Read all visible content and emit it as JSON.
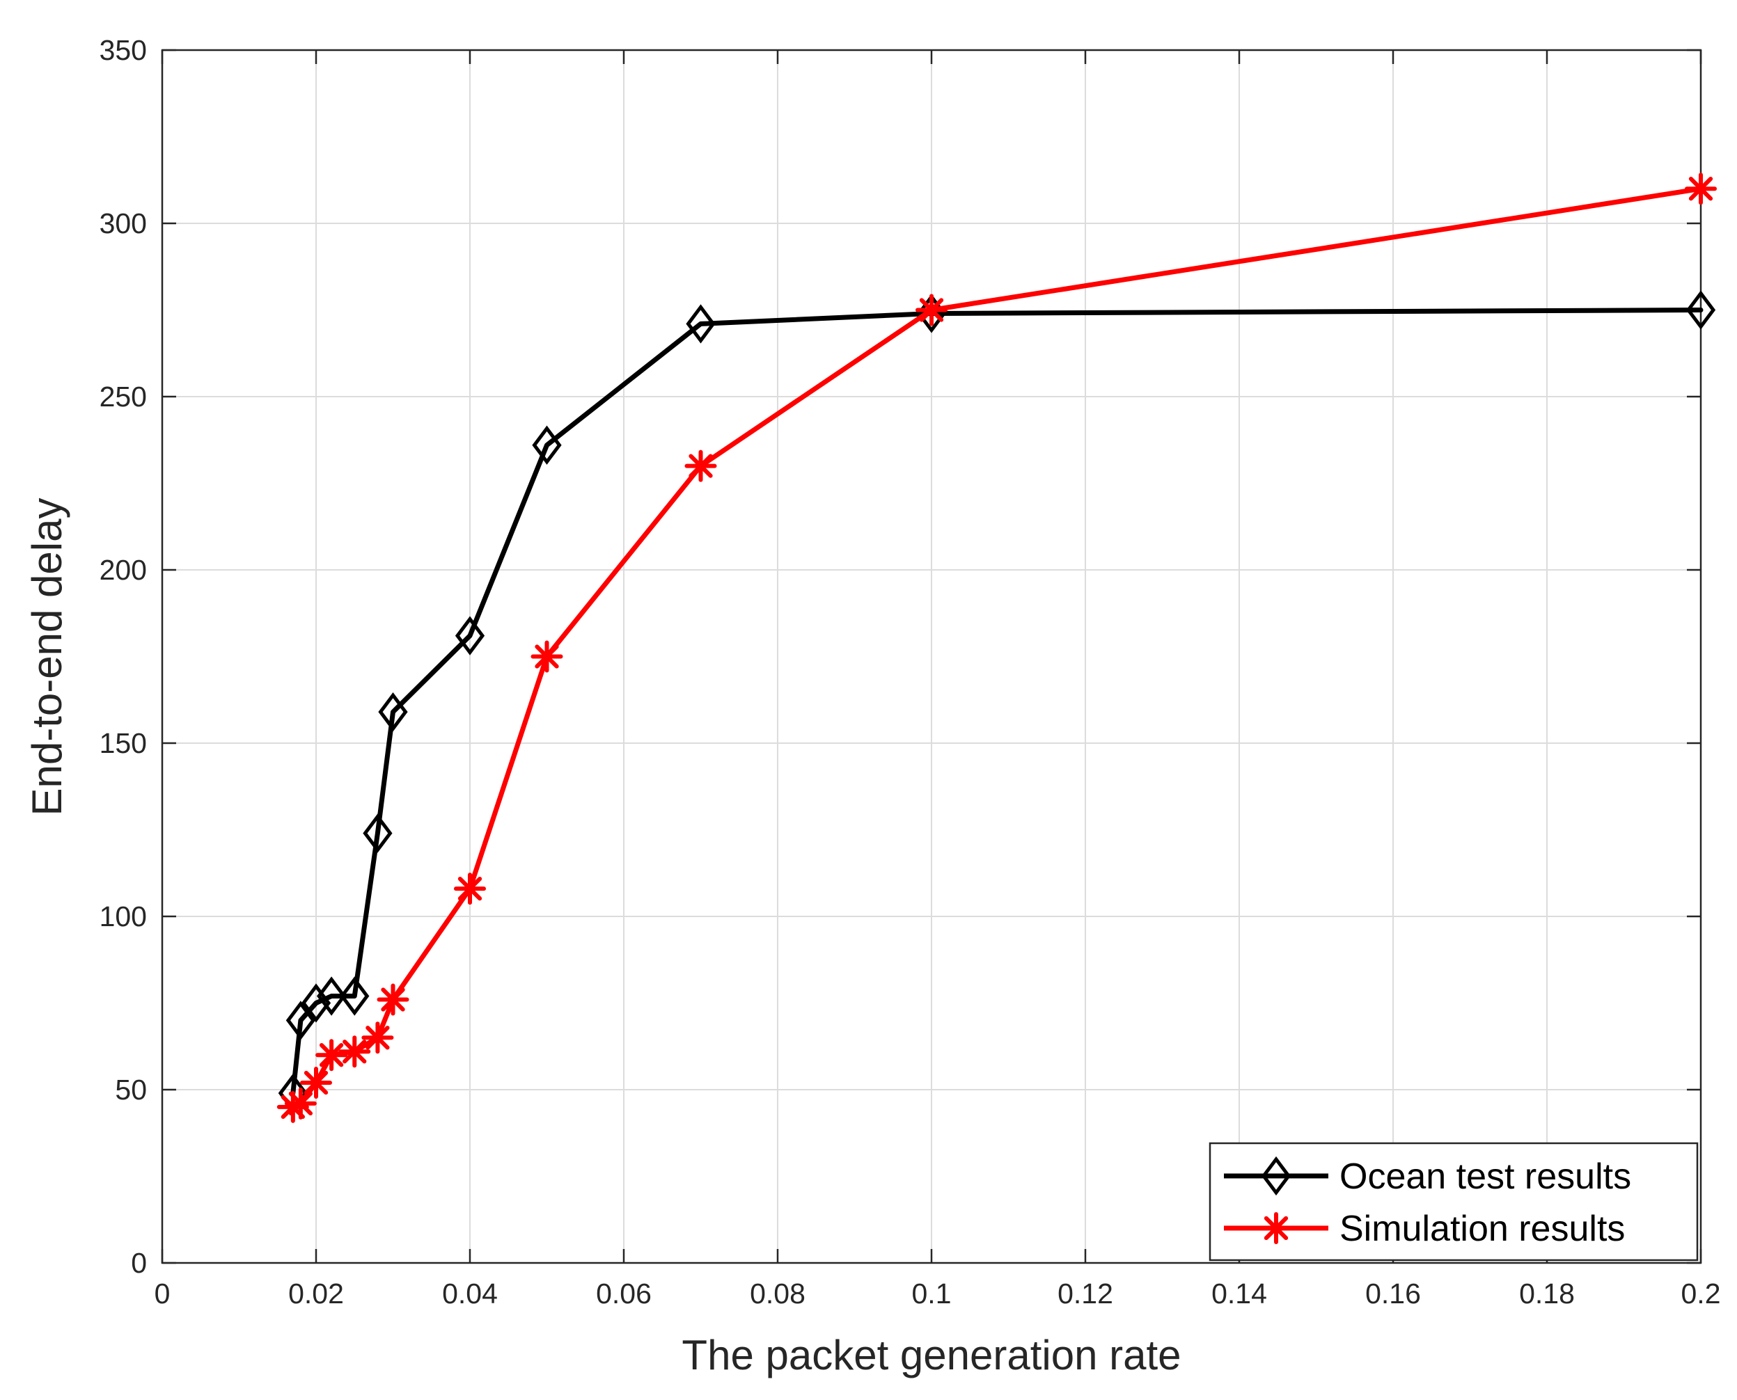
{
  "chart_data": {
    "type": "line",
    "title": "",
    "xlabel": "The packet generation rate",
    "ylabel": "End-to-end delay",
    "xlim": [
      0,
      0.2
    ],
    "ylim": [
      0,
      350
    ],
    "xticks": [
      0,
      0.02,
      0.04,
      0.06,
      0.08,
      0.1,
      0.12,
      0.14,
      0.16,
      0.18,
      0.2
    ],
    "xtick_labels": [
      "0",
      "0.02",
      "0.04",
      "0.06",
      "0.08",
      "0.1",
      "0.12",
      "0.14",
      "0.16",
      "0.18",
      "0.2"
    ],
    "yticks": [
      0,
      50,
      100,
      150,
      200,
      250,
      300,
      350
    ],
    "ytick_labels": [
      "0",
      "50",
      "100",
      "150",
      "200",
      "250",
      "300",
      "350"
    ],
    "grid": true,
    "legend_position": "bottom-right",
    "series": [
      {
        "name": "Ocean test results",
        "color": "#000000",
        "marker": "diamond",
        "x": [
          0.017,
          0.018,
          0.02,
          0.022,
          0.025,
          0.028,
          0.03,
          0.04,
          0.05,
          0.07,
          0.1,
          0.2
        ],
        "y": [
          49,
          70,
          75,
          77,
          77,
          124,
          159,
          181,
          236,
          271,
          274,
          275
        ]
      },
      {
        "name": "Simulation results",
        "color": "#ff0000",
        "marker": "asterisk",
        "x": [
          0.017,
          0.018,
          0.02,
          0.022,
          0.025,
          0.028,
          0.03,
          0.04,
          0.05,
          0.07,
          0.1,
          0.2
        ],
        "y": [
          45,
          46,
          52,
          60,
          61,
          65,
          76,
          108,
          175,
          230,
          275,
          310
        ]
      }
    ]
  }
}
